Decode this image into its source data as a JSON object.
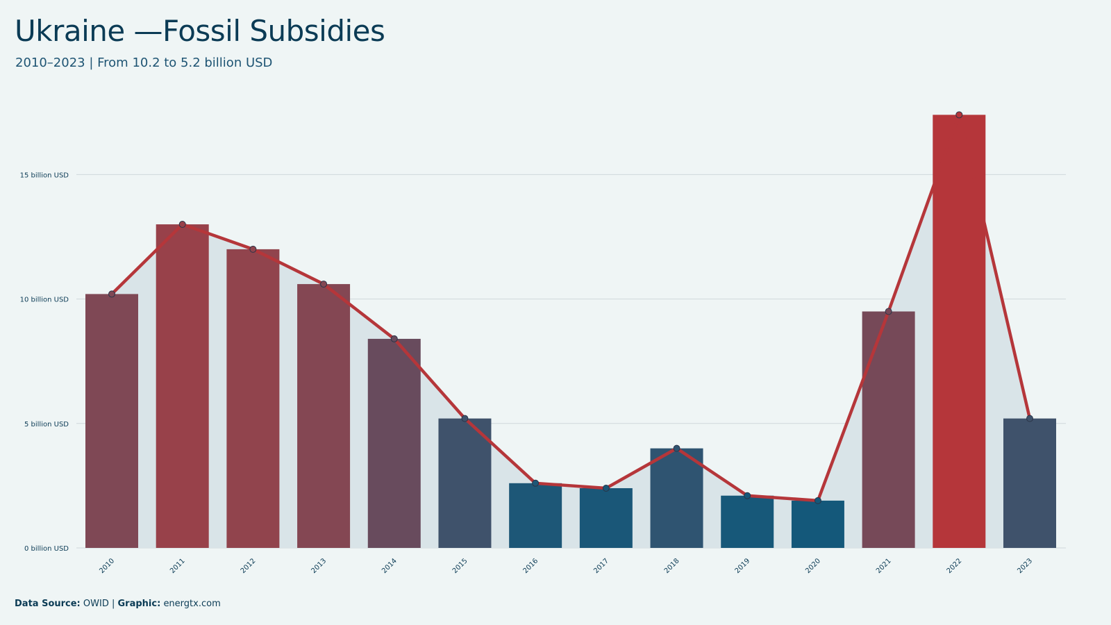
{
  "header": {
    "title": "Ukraine —Fossil Subsidies",
    "subtitle": "2010–2023 | From 10.2 to 5.2 billion USD"
  },
  "footer": {
    "source_label": "Data Source:",
    "source_value": "OWID",
    "separator": "|",
    "graphic_label": "Graphic:",
    "graphic_value": "energtx.com"
  },
  "chart_data": {
    "type": "bar",
    "title": "Ukraine —Fossil Subsidies",
    "subtitle": "2010–2023 | From 10.2 to 5.2 billion USD",
    "xlabel": "",
    "ylabel": "",
    "categories": [
      "2010",
      "2011",
      "2012",
      "2013",
      "2014",
      "2015",
      "2016",
      "2017",
      "2018",
      "2019",
      "2020",
      "2021",
      "2022",
      "2023"
    ],
    "values": [
      10.2,
      13.0,
      12.0,
      10.6,
      8.4,
      5.2,
      2.6,
      2.4,
      4.0,
      2.1,
      1.9,
      9.5,
      17.4,
      5.2
    ],
    "overlay": "line",
    "ylim": [
      0,
      19
    ],
    "yticks": [
      0,
      5,
      10,
      15
    ],
    "ytick_labels": [
      "0 billion USD",
      "5 billion USD",
      "10 billion USD",
      "15 billion USD"
    ],
    "grid": true,
    "legend": "none",
    "colors": {
      "low": "#14587a",
      "mid": "#8c4650",
      "high": "#b5363a",
      "line": "#b5363a",
      "area": "#d9e4e8",
      "grid": "#cfd8db"
    }
  }
}
